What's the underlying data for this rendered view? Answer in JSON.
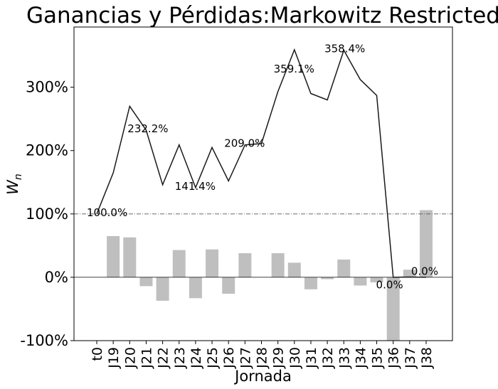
{
  "chart_data": {
    "type": "line+bar",
    "title": "Ganancias y Pérdidas:Markowitz Restricted",
    "xlabel": "Jornada",
    "ylabel": "W",
    "ylabel_sub": "n",
    "ylim": [
      -100,
      395
    ],
    "yticks": [
      -100,
      0,
      100,
      200,
      300
    ],
    "ytick_labels": [
      "-100%",
      "0%",
      "100%",
      "200%",
      "300%"
    ],
    "categories": [
      "t0",
      "J19",
      "J20",
      "J21",
      "J22",
      "J23",
      "J24",
      "J25",
      "J26",
      "J27",
      "J28",
      "J29",
      "J30",
      "J31",
      "J32",
      "J33",
      "J34",
      "J35",
      "J36",
      "J37",
      "J38"
    ],
    "line_series": {
      "values": [
        100.0,
        165,
        270,
        232.2,
        146,
        209,
        141.4,
        205,
        152,
        209.0,
        211,
        293,
        359.1,
        290,
        280,
        358.4,
        312,
        287,
        0.0,
        0.5,
        0.0
      ],
      "color": "#1a1a1a"
    },
    "bar_series": {
      "values": [
        0,
        65,
        63,
        -14,
        -37,
        43,
        -33,
        44,
        -26,
        38,
        0,
        38,
        23,
        -19,
        -3,
        28,
        -13,
        -8,
        -100,
        12,
        106
      ],
      "color": "#bfbfbf"
    },
    "reference_line": {
      "value": 100,
      "style": "dashdot",
      "color": "#555555"
    },
    "zero_line": {
      "value": 0,
      "color": "#000000"
    },
    "annotations": [
      {
        "label": "100.0%",
        "category": "t0",
        "y": 100
      },
      {
        "label": "232.2%",
        "category": "J20",
        "y": 232.2
      },
      {
        "label": "141.4%",
        "category": "J23",
        "y": 141.4
      },
      {
        "label": "209.0%",
        "category": "J26",
        "y": 209.0
      },
      {
        "label": "359.1%",
        "category": "J29",
        "y": 326.5
      },
      {
        "label": "358.4%",
        "category": "J32",
        "y": 358.4
      },
      {
        "label": "0.0%",
        "category": "J35",
        "y": -14
      },
      {
        "label": "0.0%",
        "category": "J37",
        "y": 7
      }
    ]
  }
}
